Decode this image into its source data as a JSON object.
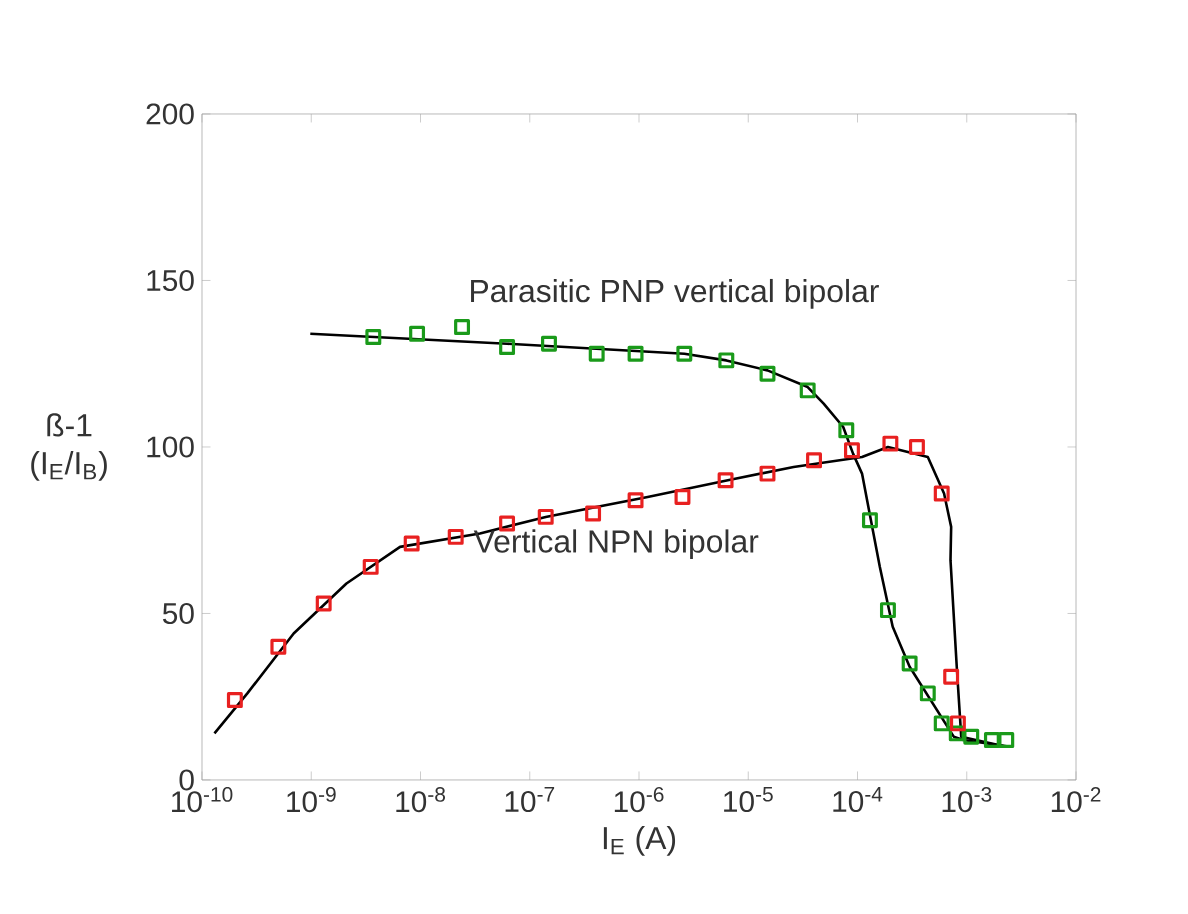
{
  "chart_data": {
    "type": "scatter",
    "xlabel": "I$_{E}$ (A)",
    "ylabel": "ß-1 (I$_{E}$/I$_{B}$)",
    "log": "x",
    "xlim": [
      1e-10,
      0.01
    ],
    "ylim": [
      0,
      200
    ],
    "xticks": [
      {
        "value": 1e-10,
        "label": "10$^{-10}$"
      },
      {
        "value": 1e-09,
        "label": "10$^{-9}$"
      },
      {
        "value": 1e-08,
        "label": "10$^{-8}$"
      },
      {
        "value": 1e-07,
        "label": "10$^{-7}$"
      },
      {
        "value": 1e-06,
        "label": "10$^{-6}$"
      },
      {
        "value": 1e-05,
        "label": "10$^{-5}$"
      },
      {
        "value": 0.0001,
        "label": "10$^{-4}$"
      },
      {
        "value": 0.001,
        "label": "10$^{-3}$"
      },
      {
        "value": 0.01,
        "label": "10$^{-2}$"
      }
    ],
    "yticks": [
      0,
      50,
      100,
      150,
      200
    ],
    "marker": "square",
    "annotations": [
      "Parasitic PNP vertical bipolar",
      "Vertical NPN bipolar"
    ],
    "series": [
      {
        "color": "#1a9a1a",
        "x": [
          3.7e-09,
          9.3e-09,
          2.4e-08,
          6.2e-08,
          1.5e-07,
          4.1e-07,
          9.3e-07,
          2.6e-06,
          6.3e-06,
          1.5e-05,
          3.5e-05,
          7.9e-05,
          0.00013,
          0.00019,
          0.0003,
          0.00044,
          0.00059,
          0.00081,
          0.0011,
          0.0017,
          0.0023
        ],
        "values": [
          133,
          134,
          136,
          130,
          131,
          128,
          128,
          128,
          126,
          122,
          117,
          105,
          78,
          51,
          35,
          26,
          17,
          14,
          13,
          12,
          12
        ]
      },
      {
        "color": "#e82020",
        "x": [
          2e-10,
          5e-10,
          1.3e-09,
          3.5e-09,
          8.3e-09,
          2.1e-08,
          6.2e-08,
          1.4e-07,
          3.8e-07,
          9.3e-07,
          2.5e-06,
          6.2e-06,
          1.5e-05,
          4e-05,
          8.9e-05,
          0.0002,
          0.00035,
          0.00059,
          0.00072,
          0.00083
        ],
        "values": [
          24,
          40,
          53,
          64,
          71,
          73,
          77,
          79,
          80,
          84,
          85,
          90,
          92,
          96,
          99,
          101,
          100,
          86,
          31,
          17
        ]
      },
      {
        "type": "line",
        "marker": "none",
        "color": "#000000",
        "x": [
          9.8e-10,
          6.2e-08,
          2.6e-06,
          6.3e-06,
          1.5e-05,
          3.5e-05,
          4.9e-05,
          7.4e-05,
          9.1e-05,
          0.00011,
          0.00016,
          0.00021,
          0.0003,
          0.00076,
          0.00093,
          0.0025
        ],
        "values": [
          134,
          131,
          128,
          126,
          123,
          118,
          113,
          106,
          98,
          92,
          64,
          46,
          34,
          13,
          12,
          10
        ]
      },
      {
        "type": "line",
        "marker": "none",
        "color": "#000000",
        "x": [
          1.3e-10,
          2.6e-10,
          6.9e-10,
          2.1e-09,
          6.5e-09,
          3.5e-08,
          1.4e-07,
          1.2e-06,
          6.5e-06,
          2.6e-05,
          0.00011,
          0.00019,
          0.00044,
          0.00062,
          0.00072,
          0.00071,
          0.00081,
          0.00089,
          0.0023
        ],
        "values": [
          14,
          26,
          44,
          59,
          70,
          74,
          79,
          85,
          90,
          94,
          97,
          100,
          97,
          86,
          76,
          66,
          34,
          13,
          10
        ]
      }
    ]
  }
}
